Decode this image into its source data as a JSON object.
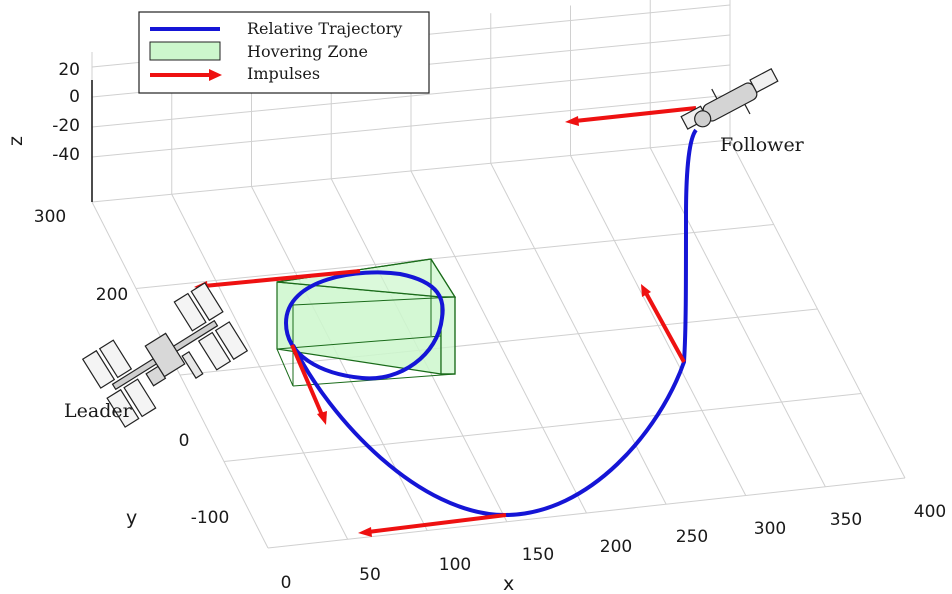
{
  "chart_data": {
    "type": "line",
    "projection": "3d",
    "legend": {
      "placement": "top-left",
      "entries": [
        {
          "name": "Relative Trajectory",
          "kind": "line",
          "color": "#1515d6"
        },
        {
          "name": "Hovering Zone",
          "kind": "box",
          "color": "#ccf7cc"
        },
        {
          "name": "Impulses",
          "kind": "arrow",
          "color": "#ee1111"
        }
      ]
    },
    "axes": {
      "x": {
        "label": "x",
        "ticks": [
          "0",
          "50",
          "100",
          "150",
          "200",
          "250",
          "300",
          "350",
          "400"
        ],
        "range": [
          0,
          400
        ]
      },
      "y": {
        "label": "y",
        "ticks": [
          "-100",
          "0",
          "200",
          "300"
        ],
        "range": [
          -150,
          300
        ]
      },
      "z": {
        "label": "z",
        "ticks": [
          "20",
          "0",
          "-20",
          "-40"
        ],
        "range": [
          -50,
          25
        ]
      }
    },
    "grid": true,
    "annotations": {
      "leader": "Leader",
      "follower": "Follower"
    },
    "series": [
      {
        "name": "Relative Trajectory",
        "color": "#1515d6"
      }
    ],
    "hovering_zone": {
      "color": "#ccf7cc",
      "edge_color": "#1a6b1a"
    },
    "impulses": {
      "color": "#ee1111",
      "count": 5
    }
  }
}
